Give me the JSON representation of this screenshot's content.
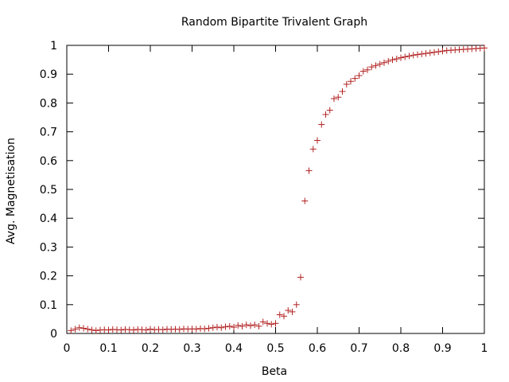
{
  "chart_data": {
    "type": "scatter",
    "title": "Random Bipartite Trivalent Graph",
    "xlabel": "Beta",
    "ylabel": "Avg. Magnetisation",
    "xlim": [
      0,
      1
    ],
    "ylim": [
      0,
      1
    ],
    "xticks": [
      "0",
      "0.1",
      "0.2",
      "0.3",
      "0.4",
      "0.5",
      "0.6",
      "0.7",
      "0.8",
      "0.9",
      "1"
    ],
    "yticks": [
      "0",
      "0.1",
      "0.2",
      "0.3",
      "0.4",
      "0.5",
      "0.6",
      "0.7",
      "0.8",
      "0.9",
      "1"
    ],
    "grid": false,
    "legend": "none",
    "marker": "plus",
    "marker_color": "#b22222",
    "series": [
      {
        "x": [
          0.01,
          0.02,
          0.03,
          0.04,
          0.05,
          0.06,
          0.07,
          0.08,
          0.09,
          0.1,
          0.11,
          0.12,
          0.13,
          0.14,
          0.15,
          0.16,
          0.17,
          0.18,
          0.19,
          0.2,
          0.21,
          0.22,
          0.23,
          0.24,
          0.25,
          0.26,
          0.27,
          0.28,
          0.29,
          0.3,
          0.31,
          0.32,
          0.33,
          0.34,
          0.35,
          0.36,
          0.37,
          0.38,
          0.39,
          0.4,
          0.41,
          0.42,
          0.43,
          0.44,
          0.45,
          0.46,
          0.47,
          0.48,
          0.49,
          0.5,
          0.51,
          0.52,
          0.53,
          0.54,
          0.55,
          0.56,
          0.57,
          0.58,
          0.59,
          0.6,
          0.61,
          0.62,
          0.63,
          0.64,
          0.65,
          0.66,
          0.67,
          0.68,
          0.69,
          0.7,
          0.71,
          0.72,
          0.73,
          0.74,
          0.75,
          0.76,
          0.77,
          0.78,
          0.79,
          0.8,
          0.81,
          0.82,
          0.83,
          0.84,
          0.85,
          0.86,
          0.87,
          0.88,
          0.89,
          0.9,
          0.91,
          0.92,
          0.93,
          0.94,
          0.95,
          0.96,
          0.97,
          0.98,
          0.99,
          1.0
        ],
        "y": [
          0.01,
          0.015,
          0.02,
          0.018,
          0.015,
          0.012,
          0.01,
          0.012,
          0.013,
          0.012,
          0.014,
          0.013,
          0.012,
          0.014,
          0.013,
          0.012,
          0.014,
          0.013,
          0.012,
          0.015,
          0.013,
          0.014,
          0.013,
          0.015,
          0.014,
          0.015,
          0.014,
          0.016,
          0.015,
          0.016,
          0.015,
          0.017,
          0.016,
          0.018,
          0.02,
          0.022,
          0.02,
          0.023,
          0.025,
          0.022,
          0.028,
          0.025,
          0.03,
          0.027,
          0.03,
          0.025,
          0.04,
          0.035,
          0.032,
          0.035,
          0.065,
          0.06,
          0.08,
          0.075,
          0.1,
          0.195,
          0.46,
          0.565,
          0.64,
          0.67,
          0.725,
          0.76,
          0.775,
          0.815,
          0.82,
          0.84,
          0.865,
          0.875,
          0.885,
          0.895,
          0.91,
          0.915,
          0.925,
          0.93,
          0.935,
          0.94,
          0.945,
          0.95,
          0.953,
          0.957,
          0.96,
          0.963,
          0.966,
          0.968,
          0.97,
          0.972,
          0.974,
          0.976,
          0.978,
          0.98,
          0.982,
          0.983,
          0.984,
          0.985,
          0.986,
          0.987,
          0.988,
          0.989,
          0.99,
          0.991
        ]
      }
    ]
  }
}
